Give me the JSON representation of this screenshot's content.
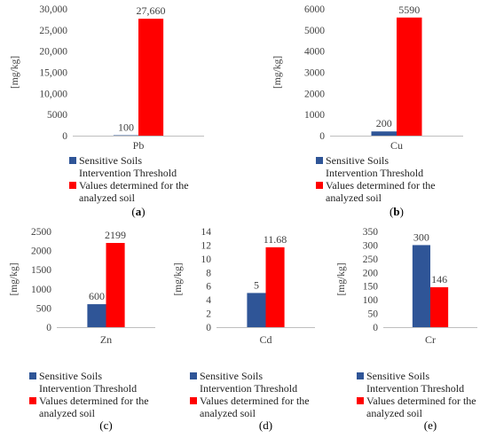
{
  "chart_data": [
    {
      "type": "bar",
      "panel_label": "(a)",
      "categories": [
        "Pb"
      ],
      "ylabel": "[mg/kg]",
      "ylim": [
        0,
        30000
      ],
      "yticks": [
        "0",
        "5000",
        "10,000",
        "15,000",
        "20,000",
        "25,000",
        "30,000"
      ],
      "series": [
        {
          "name": "Sensitive Soils Intervention Threshold",
          "values": [
            100
          ],
          "labels": [
            "100"
          ]
        },
        {
          "name": "Values determined for the analyzed soil",
          "values": [
            27660
          ],
          "labels": [
            "27,660"
          ]
        }
      ],
      "legend_lines": [
        [
          "Sensitive Soils",
          "Intervention Threshold"
        ],
        [
          "Values determined for the",
          "analyzed soil"
        ]
      ],
      "grid": false
    },
    {
      "type": "bar",
      "panel_label": "(b)",
      "categories": [
        "Cu"
      ],
      "ylabel": "[mg/kg]",
      "ylim": [
        0,
        6000
      ],
      "yticks": [
        "0",
        "1000",
        "2000",
        "3000",
        "4000",
        "5000",
        "6000"
      ],
      "series": [
        {
          "name": "Sensitive Soils Intervention Threshold",
          "values": [
            200
          ],
          "labels": [
            "200"
          ]
        },
        {
          "name": "Values determined for the analyzed soil",
          "values": [
            5590
          ],
          "labels": [
            "5590"
          ]
        }
      ],
      "legend_lines": [
        [
          "Sensitive Soils",
          "Intervention Threshold"
        ],
        [
          "Values determined for the",
          "analyzed soil"
        ]
      ],
      "grid": false
    },
    {
      "type": "bar",
      "panel_label": "(c)",
      "categories": [
        "Zn"
      ],
      "ylabel": "[mg/kg]",
      "ylim": [
        0,
        2500
      ],
      "yticks": [
        "0",
        "500",
        "1000",
        "1500",
        "2000",
        "2500"
      ],
      "series": [
        {
          "name": "Sensitive Soils Intervention Threshold",
          "values": [
            600
          ],
          "labels": [
            "600"
          ]
        },
        {
          "name": "Values determined for the analyzed soil",
          "values": [
            2199
          ],
          "labels": [
            "2199"
          ]
        }
      ],
      "legend_lines": [
        [
          "Sensitive Soils",
          "Intervention Threshold"
        ],
        [
          "Values determined for the",
          "analyzed soil"
        ]
      ],
      "grid": false
    },
    {
      "type": "bar",
      "panel_label": "(d)",
      "categories": [
        "Cd"
      ],
      "ylabel": "[mg/kg]",
      "ylim": [
        0,
        14
      ],
      "yticks": [
        "0",
        "2",
        "4",
        "6",
        "8",
        "10",
        "12",
        "14"
      ],
      "series": [
        {
          "name": "Sensitive Soils Intervention Threshold",
          "values": [
            5
          ],
          "labels": [
            "5"
          ]
        },
        {
          "name": "Values determined for the analyzed soil",
          "values": [
            11.68
          ],
          "labels": [
            "11.68"
          ]
        }
      ],
      "legend_lines": [
        [
          "Sensitive Soils",
          "Intervention Threshold"
        ],
        [
          "Values determined for the",
          "analyzed soil"
        ]
      ],
      "grid": false
    },
    {
      "type": "bar",
      "panel_label": "(e)",
      "categories": [
        "Cr"
      ],
      "ylabel": "[mg/kg]",
      "ylim": [
        0,
        350
      ],
      "yticks": [
        "0",
        "50",
        "100",
        "150",
        "200",
        "250",
        "300",
        "350"
      ],
      "series": [
        {
          "name": "Sensitive Soils Intervention Threshold",
          "values": [
            300
          ],
          "labels": [
            "300"
          ]
        },
        {
          "name": "Values determined for the analyzed soil",
          "values": [
            146
          ],
          "labels": [
            "146"
          ]
        }
      ],
      "legend_lines": [
        [
          "Sensitive Soils",
          "Intervention Threshold"
        ],
        [
          "Values determined for the",
          "analyzed soil"
        ]
      ],
      "grid": false
    }
  ],
  "colors": {
    "threshold": "#2f5597",
    "analyzed": "#ff0000",
    "axis": "#bfbfbf",
    "text": "#404040"
  }
}
